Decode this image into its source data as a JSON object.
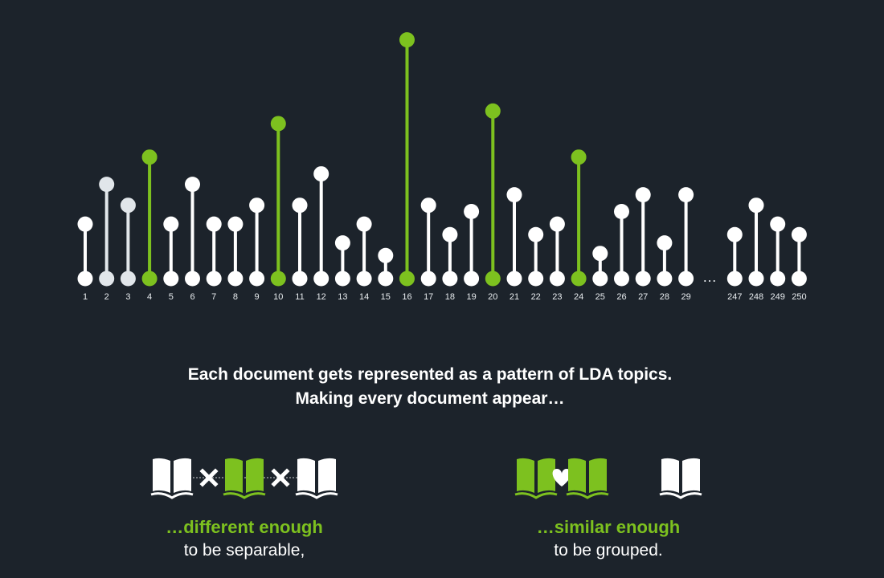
{
  "chart_data": {
    "type": "lollipop",
    "categories": [
      "1",
      "2",
      "3",
      "4",
      "5",
      "6",
      "7",
      "8",
      "9",
      "10",
      "11",
      "12",
      "13",
      "14",
      "15",
      "16",
      "17",
      "18",
      "19",
      "20",
      "21",
      "22",
      "23",
      "24",
      "25",
      "26",
      "27",
      "28",
      "29",
      "247",
      "248",
      "249",
      "250"
    ],
    "values": [
      26,
      45,
      35,
      58,
      26,
      45,
      26,
      26,
      35,
      74,
      35,
      50,
      17,
      26,
      11,
      114,
      35,
      21,
      32,
      80,
      40,
      21,
      26,
      58,
      12,
      32,
      40,
      17,
      40,
      21,
      35,
      26,
      21
    ],
    "highlighted": [
      "4",
      "10",
      "16",
      "20",
      "24"
    ],
    "gap_after": "29",
    "gap_label": "…",
    "ylim": [
      0,
      115
    ],
    "colors": {
      "default": "#ffffff",
      "faded": "#e1e6ea",
      "highlight": "#7dc11f"
    },
    "faded": [
      "2",
      "3"
    ]
  },
  "caption": {
    "line1": "Each document gets represented as a pattern of LDA topics.",
    "line2": "Making every document appear…"
  },
  "left_panel": {
    "icons": [
      "book-icon-white",
      "cross-icon",
      "book-icon-green",
      "cross-icon",
      "book-icon-white"
    ],
    "accent": "…different enough",
    "sub": "to be separable,"
  },
  "right_panel": {
    "icons": [
      "book-icon-green",
      "heart-icon",
      "book-icon-green",
      "book-icon-white"
    ],
    "accent": "…similar enough",
    "sub": "to be grouped."
  },
  "colors": {
    "background": "#1c232b",
    "accent": "#7dc11f",
    "text": "#ffffff"
  }
}
